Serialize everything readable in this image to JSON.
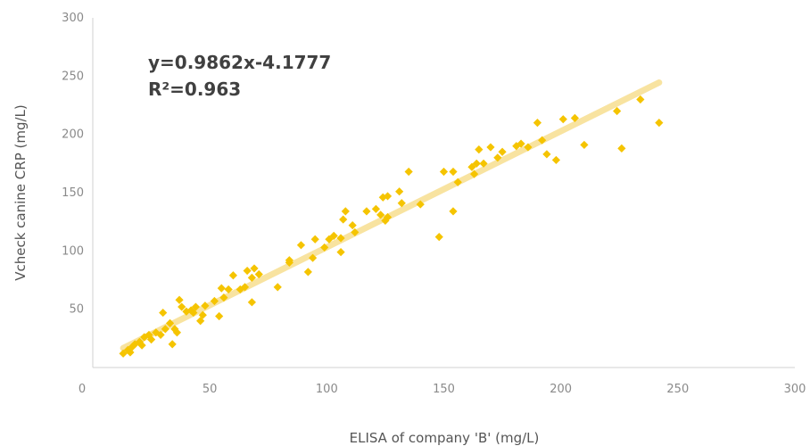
{
  "chart_data": {
    "type": "scatter",
    "title": "",
    "xlabel": "ELISA of company 'B' (mg/L)",
    "ylabel": "Vcheck canine CRP (mg/L)",
    "xlim": [
      0,
      300
    ],
    "ylim": [
      0,
      300
    ],
    "x_ticks": [
      "0",
      "50",
      "100",
      "150",
      "200",
      "250",
      "300"
    ],
    "y_ticks": [
      "50",
      "100",
      "150",
      "200",
      "250",
      "300"
    ],
    "y_tick_values": [
      50,
      100,
      150,
      200,
      250,
      300
    ],
    "x_tick_values": [
      0,
      50,
      100,
      150,
      200,
      250,
      300
    ],
    "grid": false,
    "legend": "none",
    "annotations": {
      "equation": "y=0.9862x-4.1777",
      "r_squared": "R²=0.963"
    },
    "trendline": {
      "slope": 0.9862,
      "intercept": -4.1777,
      "x_range": [
        13,
        242
      ]
    },
    "colors": {
      "points": "#f5c400",
      "trendline": "#f8e3a0",
      "axis": "#d0d0d0"
    },
    "series": [
      {
        "points": [
          [
            13,
            12
          ],
          [
            15,
            15
          ],
          [
            16,
            13
          ],
          [
            17,
            18
          ],
          [
            18,
            20
          ],
          [
            20,
            22
          ],
          [
            21,
            19
          ],
          [
            22,
            26
          ],
          [
            24,
            28
          ],
          [
            25,
            24
          ],
          [
            27,
            30
          ],
          [
            29,
            28
          ],
          [
            30,
            47
          ],
          [
            31,
            33
          ],
          [
            33,
            38
          ],
          [
            34,
            20
          ],
          [
            35,
            33
          ],
          [
            36,
            30
          ],
          [
            37,
            58
          ],
          [
            38,
            52
          ],
          [
            40,
            48
          ],
          [
            42,
            49
          ],
          [
            43,
            47
          ],
          [
            44,
            52
          ],
          [
            46,
            40
          ],
          [
            47,
            45
          ],
          [
            48,
            53
          ],
          [
            52,
            57
          ],
          [
            54,
            44
          ],
          [
            55,
            68
          ],
          [
            56,
            60
          ],
          [
            58,
            67
          ],
          [
            60,
            79
          ],
          [
            63,
            67
          ],
          [
            65,
            69
          ],
          [
            66,
            83
          ],
          [
            68,
            56
          ],
          [
            68,
            77
          ],
          [
            69,
            85
          ],
          [
            71,
            80
          ],
          [
            79,
            69
          ],
          [
            84,
            92
          ],
          [
            84,
            90
          ],
          [
            89,
            105
          ],
          [
            92,
            82
          ],
          [
            94,
            94
          ],
          [
            95,
            110
          ],
          [
            99,
            103
          ],
          [
            101,
            110
          ],
          [
            103,
            113
          ],
          [
            106,
            99
          ],
          [
            106,
            111
          ],
          [
            107,
            127
          ],
          [
            108,
            134
          ],
          [
            111,
            122
          ],
          [
            112,
            116
          ],
          [
            117,
            134
          ],
          [
            121,
            136
          ],
          [
            123,
            131
          ],
          [
            124,
            146
          ],
          [
            125,
            126
          ],
          [
            126,
            147
          ],
          [
            126,
            129
          ],
          [
            131,
            151
          ],
          [
            132,
            141
          ],
          [
            135,
            168
          ],
          [
            140,
            140
          ],
          [
            148,
            112
          ],
          [
            150,
            168
          ],
          [
            154,
            168
          ],
          [
            154,
            134
          ],
          [
            156,
            159
          ],
          [
            162,
            172
          ],
          [
            163,
            166
          ],
          [
            164,
            175
          ],
          [
            165,
            187
          ],
          [
            167,
            175
          ],
          [
            170,
            189
          ],
          [
            173,
            180
          ],
          [
            175,
            185
          ],
          [
            181,
            190
          ],
          [
            183,
            192
          ],
          [
            186,
            189
          ],
          [
            190,
            210
          ],
          [
            192,
            195
          ],
          [
            194,
            183
          ],
          [
            198,
            178
          ],
          [
            201,
            213
          ],
          [
            206,
            214
          ],
          [
            210,
            191
          ],
          [
            224,
            220
          ],
          [
            226,
            188
          ],
          [
            234,
            230
          ],
          [
            242,
            210
          ]
        ]
      }
    ]
  }
}
